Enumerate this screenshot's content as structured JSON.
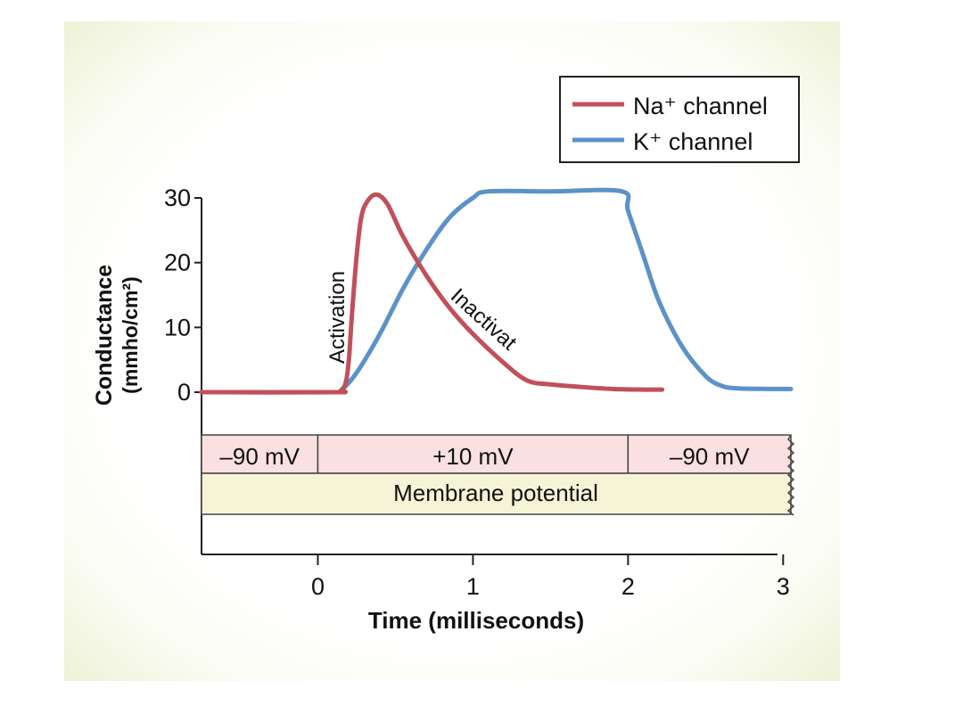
{
  "chart_data": {
    "type": "line",
    "ylabel_line1": "Conductance",
    "ylabel_line2": "(mmho/cm²)",
    "xlabel": "Time (milliseconds)",
    "xlim": [
      -0.75,
      3.05
    ],
    "ylim": [
      0,
      30
    ],
    "x_ticks": [
      "0",
      "1",
      "2",
      "3"
    ],
    "y_ticks": [
      "0",
      "10",
      "20",
      "30"
    ],
    "legend": {
      "placement": "top-right"
    },
    "series": [
      {
        "name": "Na⁺ channel",
        "color": "#c0505a",
        "x": [
          -0.75,
          0.1,
          0.15,
          0.18,
          0.2,
          0.22,
          0.25,
          0.28,
          0.32,
          0.38,
          0.45,
          0.55,
          0.7,
          0.85,
          1.0,
          1.2,
          1.35,
          1.5,
          1.7,
          1.9,
          2.1,
          2.22
        ],
        "y": [
          0,
          0,
          0.3,
          1.5,
          5,
          12,
          21,
          27,
          29.5,
          30.5,
          29,
          24,
          18,
          13,
          9,
          4.5,
          1.8,
          1.2,
          0.8,
          0.5,
          0.4,
          0.4
        ]
      },
      {
        "name": "K⁺ channel",
        "color": "#5b93c8",
        "x": [
          -0.75,
          0.1,
          0.15,
          0.25,
          0.4,
          0.55,
          0.7,
          0.85,
          1.0,
          1.1,
          1.5,
          1.96,
          2.0,
          2.1,
          2.2,
          2.35,
          2.5,
          2.6,
          2.7,
          2.9,
          3.05
        ],
        "y": [
          0,
          0,
          0.3,
          3,
          9,
          16,
          22,
          27,
          30,
          31,
          31,
          31,
          28,
          21,
          14,
          7,
          2.5,
          1,
          0.6,
          0.5,
          0.5
        ]
      }
    ],
    "annotations": {
      "activation": "Activation",
      "inactivation": "Inactivat"
    },
    "potential_bar": {
      "segments": [
        {
          "label": "–90 mV",
          "x0": -0.75,
          "x1": 0
        },
        {
          "label": "+10 mV",
          "x0": 0,
          "x1": 2
        },
        {
          "label": "–90 mV",
          "x0": 2,
          "x1": 3.05
        }
      ],
      "label": "Membrane potential",
      "segment_color": "#fae0e0",
      "label_color": "#f6f4d6"
    }
  }
}
